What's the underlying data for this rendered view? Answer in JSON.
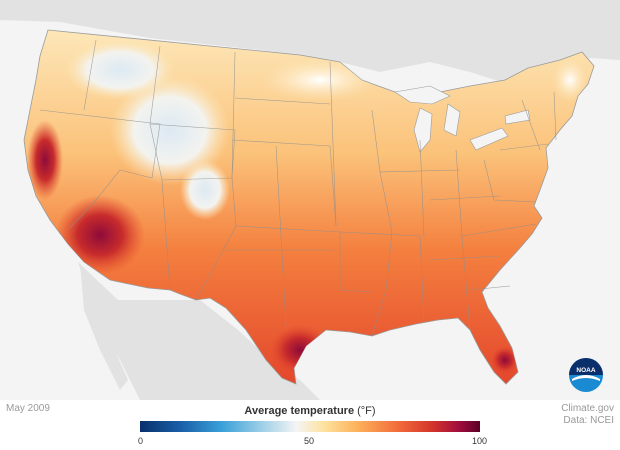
{
  "map": {
    "date": "May 2009",
    "legend": {
      "title": "Average temperature",
      "unit": "(°F)",
      "min_label": "0",
      "mid_label": "50",
      "max_label": "100",
      "range": [
        0,
        100
      ],
      "colors": [
        "#08306b",
        "#3aa0d8",
        "#f4f4f4",
        "#fcb15a",
        "#d3342a",
        "#5a0026"
      ]
    },
    "source_line1": "Climate.gov",
    "source_line2": "Data: NCEI",
    "logo_text": "NOAA"
  }
}
